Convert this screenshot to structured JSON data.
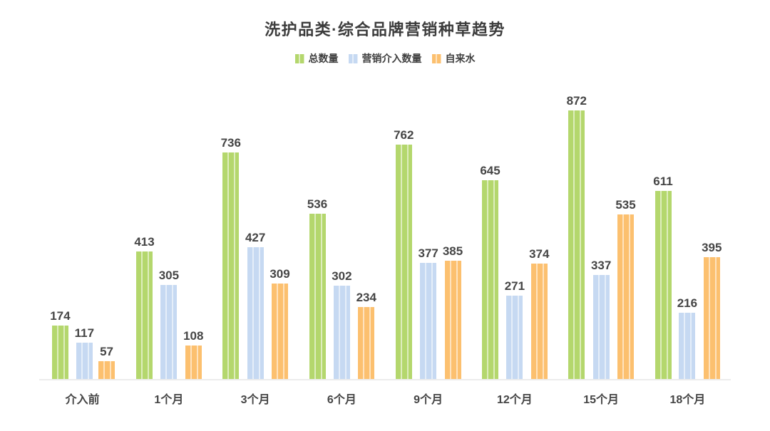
{
  "chart_data": {
    "type": "bar",
    "title": "洗护品类·综合品牌营销种草趋势",
    "xlabel": "",
    "ylabel": "",
    "grid": false,
    "legend_position": "top",
    "value_labels": true,
    "ylim": [
      0,
      880
    ],
    "categories": [
      "介入前",
      "1个月",
      "3个月",
      "6个月",
      "9个月",
      "12个月",
      "15个月",
      "18个月"
    ],
    "series": [
      {
        "name": "总数量",
        "color": "#b4d76d",
        "values": [
          174,
          413,
          736,
          536,
          762,
          645,
          872,
          611
        ]
      },
      {
        "name": "营销介入数量",
        "color": "#c6d9f2",
        "values": [
          117,
          305,
          427,
          302,
          377,
          271,
          337,
          216
        ]
      },
      {
        "name": "自来水",
        "color": "#fcc06f",
        "values": [
          57,
          108,
          309,
          234,
          385,
          374,
          535,
          395
        ]
      }
    ]
  },
  "style": {
    "stripe_overlay": "rgba(255,255,255,0.55)",
    "axis_line_color": "#ececec",
    "text_color": "#454545",
    "title_color": "#3c3c3c",
    "background": "#ffffff"
  }
}
